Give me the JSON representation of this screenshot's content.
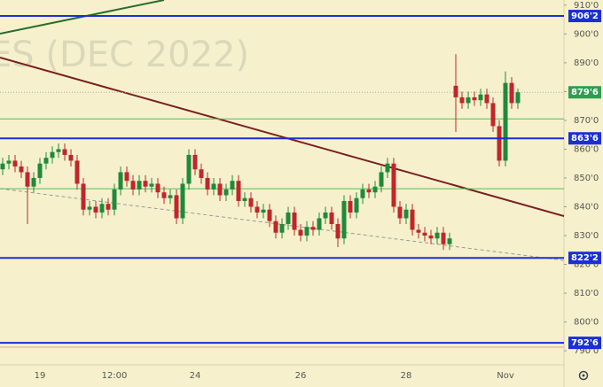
{
  "chart_data": {
    "type": "candlestick",
    "watermark": "ES (DEC 2022)",
    "categories": [
      null,
      null,
      null,
      null,
      null,
      null,
      "19",
      null,
      null,
      null,
      null,
      null,
      null,
      null,
      null,
      null,
      null,
      null,
      "12:00",
      null,
      null,
      null,
      null,
      null,
      null,
      null,
      null,
      null,
      null,
      null,
      null,
      "24",
      null,
      null,
      null,
      null,
      null,
      null,
      null,
      null,
      null,
      null,
      null,
      null,
      null,
      null,
      null,
      null,
      "26",
      null,
      null,
      null,
      null,
      null,
      null,
      null,
      null,
      null,
      null,
      null,
      null,
      null,
      null,
      null,
      null,
      "28",
      null,
      null,
      null,
      null,
      null,
      null,
      null,
      null,
      null,
      null,
      null,
      null,
      null,
      null,
      null,
      "Nov",
      null,
      null
    ],
    "open": [
      853,
      855,
      856,
      854,
      852,
      847,
      850,
      855,
      857,
      859,
      860,
      858,
      856,
      848,
      839,
      840,
      838,
      841,
      839,
      846,
      852,
      849,
      846,
      849,
      847,
      848,
      845,
      843,
      844,
      836,
      848,
      858,
      853,
      850,
      846,
      848,
      844,
      846,
      849,
      842,
      843,
      840,
      838,
      839,
      835,
      831,
      834,
      838,
      832,
      830,
      833,
      832,
      836,
      838,
      834,
      829,
      842,
      838,
      843,
      846,
      845,
      847,
      852,
      855,
      840,
      836,
      839,
      832,
      831,
      830,
      829,
      831,
      827,
      882,
      878,
      876,
      878,
      877,
      879,
      876,
      868,
      856,
      883,
      876
    ],
    "high": [
      857,
      858,
      858,
      856,
      854,
      852,
      857,
      859,
      861,
      862,
      862,
      860,
      858,
      850,
      842,
      842,
      843,
      843,
      848,
      854,
      854,
      851,
      851,
      851,
      850,
      850,
      847,
      846,
      846,
      850,
      860,
      860,
      855,
      852,
      850,
      850,
      848,
      851,
      851,
      845,
      845,
      842,
      841,
      841,
      837,
      836,
      840,
      840,
      834,
      835,
      835,
      838,
      840,
      840,
      836,
      844,
      844,
      845,
      848,
      848,
      849,
      854,
      857,
      857,
      842,
      841,
      841,
      834,
      833,
      832,
      833,
      833,
      831,
      893,
      880,
      880,
      880,
      881,
      881,
      878,
      870,
      887,
      885,
      881
    ],
    "low": [
      851,
      853,
      852,
      850,
      834,
      845,
      848,
      853,
      855,
      857,
      856,
      854,
      846,
      837,
      837,
      836,
      836,
      837,
      837,
      844,
      847,
      844,
      844,
      845,
      845,
      843,
      841,
      841,
      834,
      834,
      846,
      851,
      848,
      844,
      844,
      842,
      842,
      844,
      840,
      840,
      838,
      836,
      836,
      833,
      829,
      829,
      832,
      830,
      828,
      828,
      830,
      830,
      834,
      832,
      826,
      827,
      836,
      836,
      841,
      843,
      843,
      845,
      850,
      838,
      834,
      834,
      830,
      829,
      828,
      827,
      827,
      825,
      825,
      866,
      874,
      874,
      875,
      875,
      874,
      866,
      854,
      854,
      874,
      874
    ],
    "close": [
      855,
      856,
      854,
      852,
      847,
      850,
      855,
      857,
      859,
      860,
      858,
      856,
      848,
      839,
      840,
      838,
      841,
      839,
      846,
      852,
      849,
      846,
      849,
      847,
      848,
      845,
      843,
      844,
      836,
      848,
      858,
      853,
      850,
      846,
      848,
      844,
      846,
      849,
      842,
      843,
      840,
      838,
      839,
      835,
      831,
      834,
      838,
      832,
      830,
      833,
      832,
      836,
      838,
      834,
      829,
      842,
      838,
      843,
      846,
      845,
      847,
      852,
      855,
      840,
      836,
      839,
      832,
      831,
      830,
      829,
      831,
      827,
      829,
      878,
      876,
      878,
      877,
      879,
      876,
      868,
      856,
      883,
      876,
      879.75
    ],
    "up_color": "#1f8a3a",
    "down_color": "#c0262a",
    "ylim": [
      785.1,
      911.8
    ],
    "yticks": [
      {
        "value": 910,
        "label": "910'0"
      },
      {
        "value": 900,
        "label": "900'0"
      },
      {
        "value": 890,
        "label": "890'0"
      },
      {
        "value": 880,
        "label": "880'0"
      },
      {
        "value": 870,
        "label": "870'0"
      },
      {
        "value": 860,
        "label": "860'0"
      },
      {
        "value": 850,
        "label": "850'0"
      },
      {
        "value": 840,
        "label": "840'0"
      },
      {
        "value": 830,
        "label": "830'0"
      },
      {
        "value": 820,
        "label": "820'0"
      },
      {
        "value": 810,
        "label": "810'0"
      },
      {
        "value": 800,
        "label": "800'0"
      },
      {
        "value": 790,
        "label": "790'0"
      }
    ],
    "levels": [
      {
        "value": 906.25,
        "label": "906'2"
      },
      {
        "value": 863.75,
        "label": "863'6"
      },
      {
        "value": 822.25,
        "label": "822'2"
      },
      {
        "value": 792.75,
        "label": "792'6"
      }
    ],
    "level_color": "#1a2fd6",
    "support_lines": [
      870.5,
      846.25
    ],
    "support_color": "#4cbf5a",
    "last_price": {
      "value": 879.75,
      "label": "879'6"
    },
    "last_color": "#2e9e4f"
  }
}
